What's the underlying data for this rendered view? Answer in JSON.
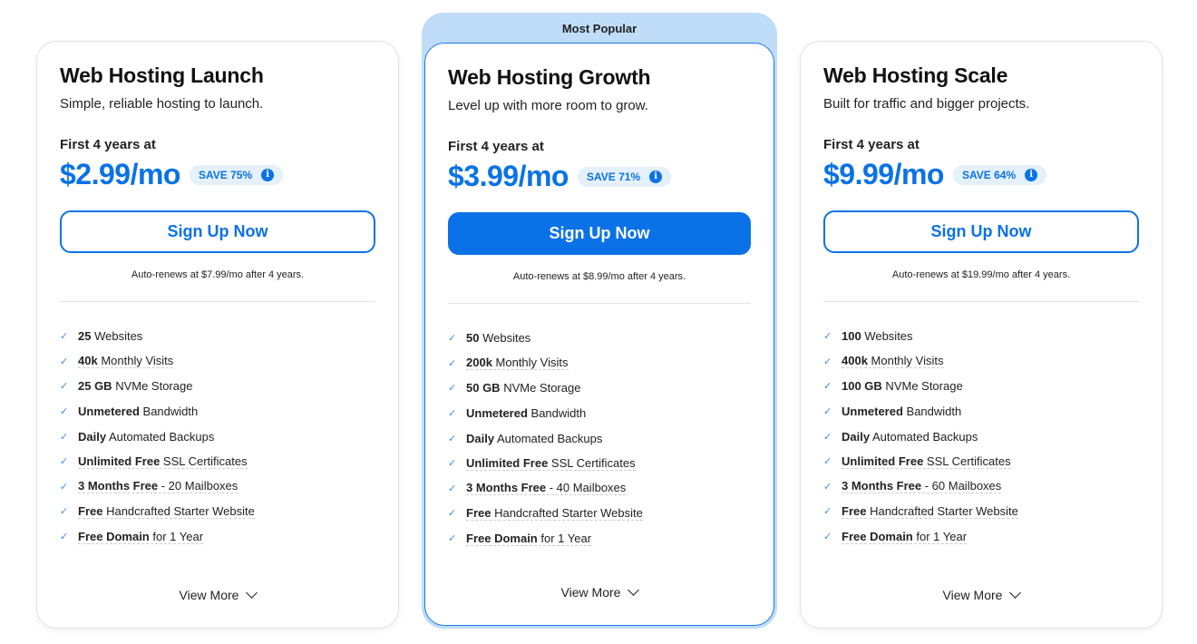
{
  "accent": "#0a72e6",
  "badge_label": "Most Popular",
  "plans": [
    {
      "title": "Web Hosting Launch",
      "subtitle": "Simple, reliable hosting to launch.",
      "term": "First 4 years at",
      "price": "$2.99/mo",
      "save": "SAVE 75%",
      "cta": "Sign Up Now",
      "renew": "Auto-renews at $7.99/mo after 4 years.",
      "view_more": "View More",
      "features": [
        [
          "25",
          " Websites"
        ],
        [
          "40k",
          " Monthly Visits"
        ],
        [
          "25 GB",
          " NVMe Storage"
        ],
        [
          "Unmetered",
          " Bandwidth"
        ],
        [
          "Daily",
          " Automated Backups"
        ],
        [
          "Unlimited Free",
          " SSL Certificates"
        ],
        [
          "3 Months Free",
          " - 20 Mailboxes"
        ],
        [
          "Free",
          " Handcrafted Starter Website"
        ],
        [
          "Free Domain",
          " for 1 Year"
        ]
      ]
    },
    {
      "title": "Web Hosting Growth",
      "subtitle": "Level up with more room to grow.",
      "term": "First 4 years at",
      "price": "$3.99/mo",
      "save": "SAVE 71%",
      "cta": "Sign Up Now",
      "renew": "Auto-renews at $8.99/mo after 4 years.",
      "view_more": "View More",
      "features": [
        [
          "50",
          " Websites"
        ],
        [
          "200k",
          " Monthly Visits"
        ],
        [
          "50 GB",
          " NVMe Storage"
        ],
        [
          "Unmetered",
          " Bandwidth"
        ],
        [
          "Daily",
          " Automated Backups"
        ],
        [
          "Unlimited Free",
          " SSL Certificates"
        ],
        [
          "3 Months Free",
          " - 40 Mailboxes"
        ],
        [
          "Free",
          " Handcrafted Starter Website"
        ],
        [
          "Free Domain",
          " for 1 Year"
        ]
      ]
    },
    {
      "title": "Web Hosting Scale",
      "subtitle": "Built for traffic and bigger projects.",
      "term": "First 4 years at",
      "price": "$9.99/mo",
      "save": "SAVE 64%",
      "cta": "Sign Up Now",
      "renew": "Auto-renews at $19.99/mo after 4 years.",
      "view_more": "View More",
      "features": [
        [
          "100",
          " Websites"
        ],
        [
          "400k",
          " Monthly Visits"
        ],
        [
          "100 GB",
          " NVMe Storage"
        ],
        [
          "Unmetered",
          " Bandwidth"
        ],
        [
          "Daily",
          " Automated Backups"
        ],
        [
          "Unlimited Free",
          " SSL Certificates"
        ],
        [
          "3 Months Free",
          " - 60 Mailboxes"
        ],
        [
          "Free",
          " Handcrafted Starter Website"
        ],
        [
          "Free Domain",
          " for 1 Year"
        ]
      ]
    }
  ]
}
